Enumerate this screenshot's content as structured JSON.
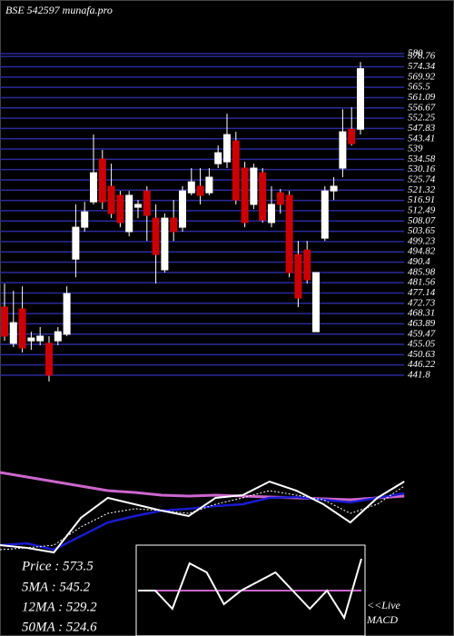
{
  "info": [
    "Price  : 573.5",
    "5MA : 545.2",
    "12MA : 529.2",
    "50MA : 524.6"
  ],
  "live": "<<Live",
  "macd_label": "MACD",
  "chart_data": [
    {
      "type": "candlestick",
      "title": "BSE 542597 munafa.pro",
      "open": [
        471.1,
        455.5,
        470.3,
        456.6,
        456.6,
        455.5,
        456.6,
        459.4,
        491.7,
        505.4,
        516.3,
        534.7,
        523.0,
        519.1,
        503.5,
        514.0,
        521.0,
        509.3,
        487.1,
        509.3,
        505.4,
        520.2,
        523.0,
        520.2,
        532.7,
        533.5,
        542.5,
        530.8,
        515.2,
        528.8,
        507.4,
        520.2,
        519.1,
        493.7,
        495.6,
        460.5,
        500.7,
        521.0,
        530.8,
        547.5,
        547.5
      ],
      "high": [
        481.2,
        478.1,
        480.0,
        460.5,
        462.5,
        458.6,
        462.5,
        480.0,
        515.2,
        516.3,
        545.2,
        538.6,
        532.7,
        521.0,
        521.0,
        517.1,
        523.0,
        515.2,
        511.3,
        517.1,
        523.0,
        530.8,
        530.8,
        530.8,
        540.5,
        554.2,
        546.4,
        533.5,
        532.7,
        530.8,
        523.0,
        521.8,
        521.0,
        499.5,
        499.5,
        485.9,
        523.0,
        526.9,
        556.1,
        556.9,
        576.4
      ],
      "low": [
        456.6,
        453.9,
        451.6,
        452.7,
        454.7,
        439.1,
        454.7,
        458.6,
        483.9,
        503.5,
        515.2,
        513.2,
        509.3,
        505.4,
        501.5,
        509.3,
        499.5,
        481.2,
        485.9,
        499.5,
        503.5,
        519.1,
        515.2,
        519.1,
        530.8,
        530.8,
        515.2,
        505.4,
        513.2,
        507.4,
        505.4,
        511.3,
        483.9,
        471.1,
        481.2,
        460.5,
        499.5,
        517.1,
        526.9,
        540.5,
        545.2
      ],
      "close": [
        458.6,
        464.4,
        453.5,
        457.8,
        458.6,
        441.8,
        460.5,
        476.9,
        505.4,
        512.0,
        528.8,
        516.3,
        511.3,
        507.4,
        519.1,
        515.2,
        510.5,
        493.7,
        509.3,
        503.5,
        521.0,
        524.9,
        519.1,
        526.9,
        537.4,
        545.2,
        517.1,
        507.4,
        530.8,
        508.5,
        515.2,
        515.2,
        485.9,
        475.0,
        482.8,
        485.9,
        521.0,
        523.0,
        546.4,
        541.3,
        573.5
      ],
      "up_color": "#ffffff",
      "down_color": "#cc0000",
      "grid_color": "#2a2a9a",
      "ylim": [
        441.8,
        580
      ],
      "yticks": [
        580,
        578.76,
        574.34,
        569.92,
        565.5,
        561.09,
        556.67,
        552.25,
        547.83,
        543.41,
        539,
        534.58,
        530.16,
        525.74,
        521.32,
        516.91,
        512.49,
        508.07,
        503.65,
        499.23,
        494.82,
        490.4,
        485.98,
        481.56,
        477.14,
        472.73,
        468.31,
        463.89,
        459.47,
        455.05,
        450.63,
        446.22,
        441.8
      ],
      "grid": true
    },
    {
      "type": "line",
      "x": [
        0,
        3,
        6,
        9,
        12,
        15,
        18,
        21,
        24,
        27,
        30,
        33,
        36,
        39,
        42,
        45
      ],
      "xlim": [
        0,
        47
      ],
      "ylim": [
        0,
        100
      ],
      "series": [
        {
          "color": "#cc66cc",
          "width": 3,
          "values": [
            81.8,
            77.3,
            72.7,
            68.2,
            63.6,
            61.8,
            59.1,
            58.2,
            59.1,
            58.2,
            57.3,
            56.4,
            55.5,
            54.5,
            56.4,
            58.2
          ]
        },
        {
          "color": "#1a1ad0",
          "width": 2.5,
          "values": [
            9.1,
            10.9,
            4.5,
            18.2,
            31.8,
            38.2,
            43.6,
            45.5,
            48.2,
            50.0,
            56.4,
            57.3,
            54.5,
            51.8,
            56.4,
            60.9
          ]
        },
        {
          "color": "#ffffff",
          "width": 2,
          "values": [
            9.1,
            6.4,
            1.8,
            36.4,
            56.4,
            50.0,
            43.6,
            38.2,
            56.4,
            59.1,
            72.7,
            63.6,
            50.0,
            31.8,
            56.4,
            72.7
          ]
        },
        {
          "color": "#ffffff",
          "width": 1,
          "dashed": true,
          "values": [
            4.5,
            6.4,
            9.1,
            27.3,
            40.9,
            45.5,
            43.6,
            40.9,
            50.0,
            56.4,
            63.6,
            59.1,
            54.5,
            40.9,
            50.0,
            68.2
          ]
        }
      ]
    },
    {
      "type": "line",
      "x": [
        0,
        1,
        2,
        3,
        4,
        5,
        6,
        7,
        8,
        9,
        10,
        11,
        12,
        13
      ],
      "xlim": [
        0,
        13
      ],
      "ylim": [
        -10,
        10
      ],
      "series": [
        {
          "color": "#cc66cc",
          "width": 2,
          "values": [
            0,
            0,
            0,
            0,
            0,
            0,
            0,
            0,
            0,
            0,
            0,
            0,
            0,
            0
          ]
        },
        {
          "color": "#ffffff",
          "width": 2,
          "values": [
            0,
            0,
            -4,
            6,
            4,
            -3,
            0,
            2,
            4,
            0,
            -4,
            0,
            -6,
            7
          ]
        }
      ]
    }
  ]
}
